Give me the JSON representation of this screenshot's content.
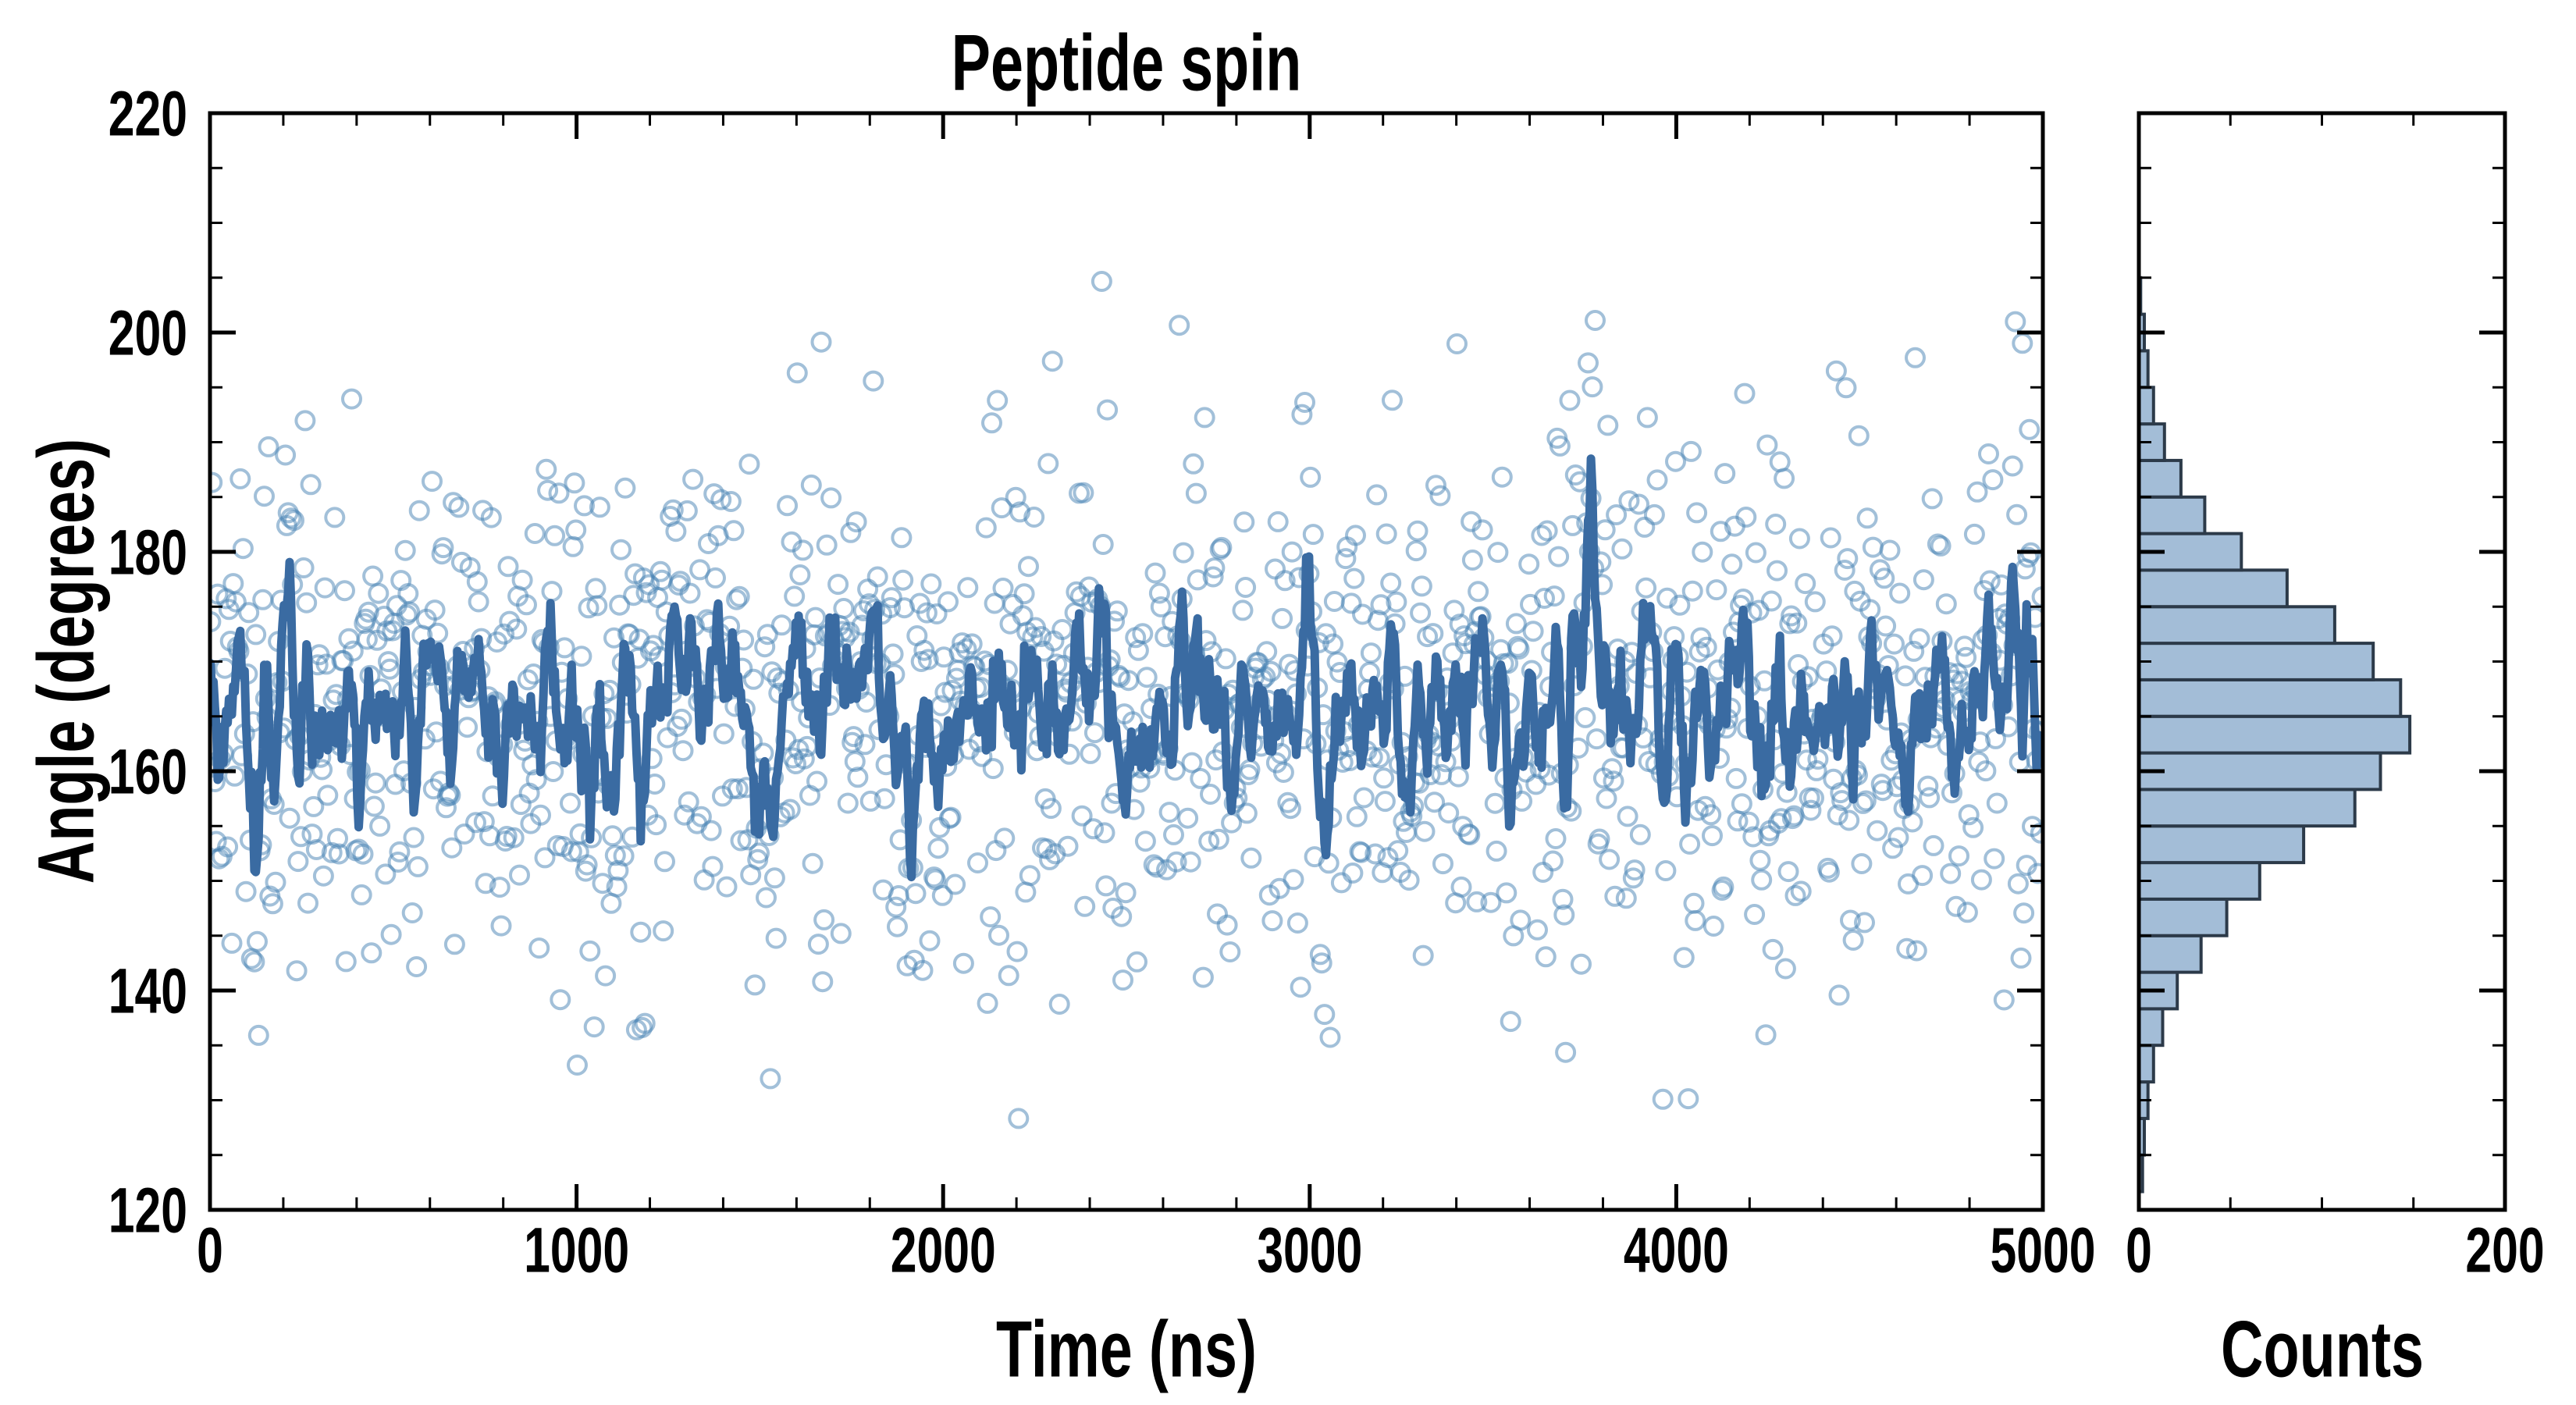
{
  "chart_data": {
    "type": "scatter",
    "title": "Peptide spin",
    "background": "#ffffff",
    "axis_color": "#000000",
    "panels": {
      "main": {
        "xlabel": "Time (ns)",
        "ylabel": "Angle (degrees)",
        "xlim": [
          0,
          5000
        ],
        "ylim": [
          120,
          220
        ],
        "x_major_ticks": [
          0,
          1000,
          2000,
          3000,
          4000,
          5000
        ],
        "x_tick_labels": [
          "0",
          "1000",
          "2000",
          "3000",
          "4000",
          "5000"
        ],
        "x_minor_step": 200,
        "y_major_ticks": [
          120,
          140,
          160,
          180,
          200,
          220
        ],
        "y_tick_labels": [
          "120",
          "140",
          "160",
          "180",
          "200",
          "220"
        ],
        "y_minor_step": 5,
        "grid": false,
        "ticks": "inward, all four spines, major and minor",
        "scatter": {
          "description": "time series of angle samples, open circle markers",
          "n": 1300,
          "x_start": 0,
          "x_end": 5000,
          "mean": 165.3,
          "std": 12.3,
          "seed": 1337,
          "marker": "open-circle",
          "marker_radius": 11.5,
          "marker_stroke_width": 4,
          "marker_color": "#4682B4",
          "marker_alpha": 0.5
        },
        "line": {
          "description": "running average of the scatter series",
          "type": "moving-average",
          "window": 7,
          "color": "#3A6BA2",
          "width": 11,
          "approx_range": [
            152,
            187
          ]
        }
      },
      "hist": {
        "xlabel": "Counts",
        "orientation": "horizontal",
        "xlim": [
          0,
          200
        ],
        "x_major_ticks": [
          0,
          200
        ],
        "x_tick_labels": [
          "0",
          "200"
        ],
        "x_minor_step": 50,
        "shares_y_with_main": true,
        "bin_start": 121.6667,
        "bin_width": 3.3333,
        "bin_centers": [
          123.33,
          126.67,
          130.0,
          133.33,
          136.67,
          140.0,
          143.33,
          146.67,
          150.0,
          153.33,
          156.67,
          160.0,
          163.33,
          166.67,
          170.0,
          173.33,
          176.67,
          180.0,
          183.33,
          186.67,
          190.0,
          193.33,
          196.67,
          200.0,
          203.33
        ],
        "counts": [
          2,
          3,
          5,
          8,
          13,
          21,
          34,
          48,
          66,
          90,
          118,
          132,
          148,
          143,
          128,
          107,
          81,
          56,
          36,
          23,
          14,
          8,
          5,
          3,
          1
        ],
        "bar_fill": "#A3BDD7",
        "bar_edge": "#2C3A49",
        "bar_edge_width": 4
      }
    }
  }
}
